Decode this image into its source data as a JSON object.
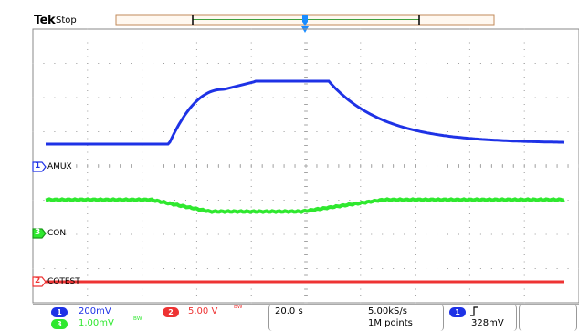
{
  "header": {
    "brand": "Tek",
    "state": "Stop"
  },
  "channels": {
    "ch1": {
      "marker": "1",
      "label": "AMUX",
      "color": "#1e32e6",
      "scale": "200mV"
    },
    "ch3": {
      "marker": "3",
      "label": "CON",
      "color": "#2fe82f",
      "scale": "1.00mV",
      "coupling_icon": "bandwidth-limit-icon"
    },
    "ch2": {
      "marker": "2",
      "label": "COTEST",
      "color": "#ee3333",
      "scale": "5.00 V",
      "coupling_icon": "bandwidth-limit-icon"
    }
  },
  "trigger": {
    "marker": "T",
    "source": "1",
    "slope_icon": "rising-edge-icon",
    "level": "328mV",
    "color": "#1a8cff"
  },
  "horizontal": {
    "scale": "20.0 s",
    "sample_rate": "5.00kS/s",
    "record_length": "1M points"
  },
  "colors": {
    "screen_bg": "#ffffff",
    "grid": "#9a9a9a",
    "record_bar": "#c08a5a"
  }
}
